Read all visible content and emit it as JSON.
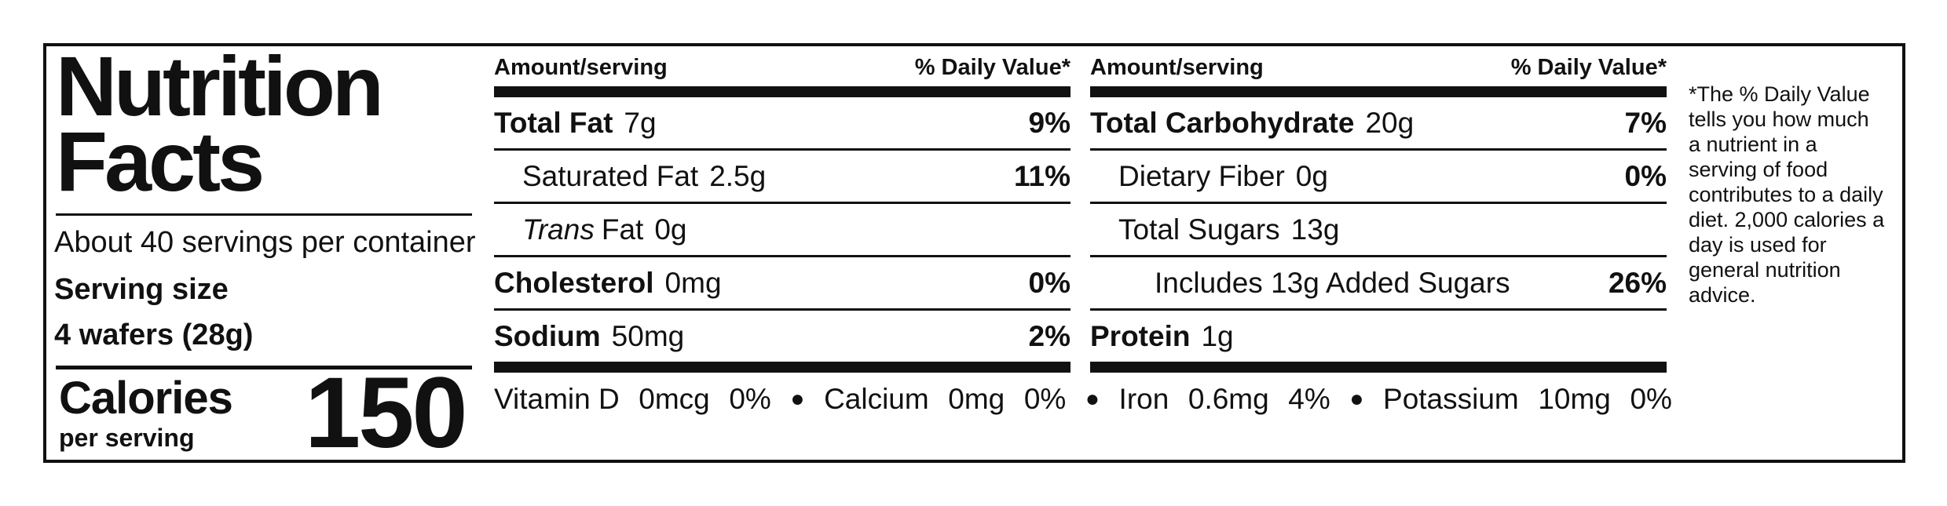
{
  "title": "Nutrition Facts",
  "servings": "About 40 servings per container",
  "serving_size_label": "Serving size",
  "serving_size": "4 wafers (28g)",
  "calories_label": "Calories",
  "calories_sub": "per serving",
  "calories": "150",
  "columns": [
    {
      "header_left": "Amount/serving",
      "header_right": "% Daily Value*",
      "rows": [
        {
          "name": "Total Fat",
          "amount": "7g",
          "dv": "9%"
        },
        {
          "name": "Saturated Fat",
          "amount": "2.5g",
          "dv": "11%"
        },
        {
          "name_italic": "Trans",
          "name": "Fat",
          "amount": "0g"
        },
        {
          "name": "Cholesterol",
          "amount": "0mg",
          "dv": "0%"
        },
        {
          "name": "Sodium",
          "amount": "50mg",
          "dv": "2%"
        }
      ]
    },
    {
      "header_left": "Amount/serving",
      "header_right": "% Daily Value*",
      "rows": [
        {
          "name": "Total Carbohydrate",
          "amount": "20g",
          "dv": "7%"
        },
        {
          "name": "Dietary Fiber",
          "amount": "0g",
          "dv": "0%"
        },
        {
          "name": "Total Sugars",
          "amount": "13g"
        },
        {
          "name": "Includes 13g Added Sugars",
          "dv": "26%"
        },
        {
          "name": "Protein",
          "amount": "1g"
        }
      ]
    }
  ],
  "vitamins": [
    {
      "name": "Vitamin D",
      "amount": "0mcg",
      "dv": "0%"
    },
    {
      "name": "Calcium",
      "amount": "0mg",
      "dv": "0%"
    },
    {
      "name": "Iron",
      "amount": "0.6mg",
      "dv": "4%"
    },
    {
      "name": "Potassium",
      "amount": "10mg",
      "dv": "0%"
    }
  ],
  "footnote": "*The % Daily Value tells you how much a nutrient in a serving of food contributes to a daily diet. 2,000 calories a day is used for general nutrition advice."
}
